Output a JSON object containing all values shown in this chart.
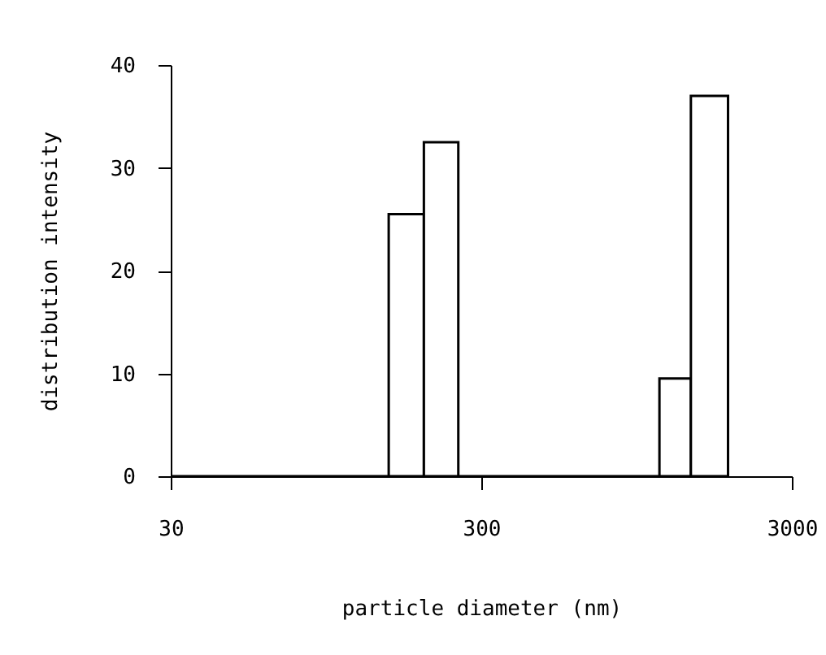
{
  "chart_data": {
    "type": "histogram",
    "xlabel": "particle diameter (nm)",
    "ylabel": "distribution intensity",
    "bins": [
      30,
      151,
      196,
      253,
      1124,
      1419,
      1869
    ],
    "values": [
      0,
      25.5,
      32.5,
      0,
      9.5,
      37
    ],
    "log": "x",
    "xlim": [
      30,
      3000
    ],
    "xticks": [
      30,
      300,
      3000
    ],
    "ylim": [
      0,
      40
    ],
    "yticks": [
      0,
      10,
      20,
      30,
      40
    ],
    "grid": false
  }
}
